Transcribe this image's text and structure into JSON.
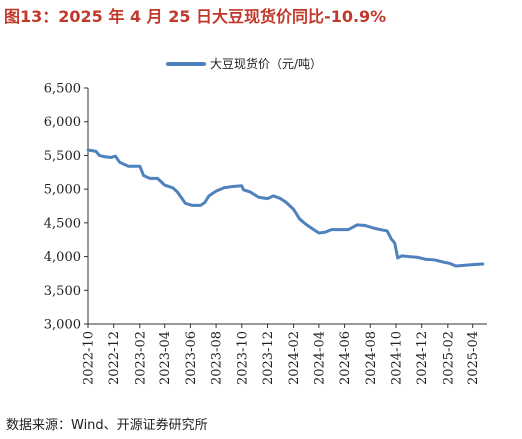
{
  "title": "图13：2025 年 4 月 25 日大豆现货价同比-10.9%",
  "source": "数据来源：Wind、开源证券研究所",
  "colors": {
    "title": "#c0392b",
    "line": "#4f81bd",
    "axis": "#333333"
  },
  "chart_data": {
    "type": "line",
    "title": "图13：2025 年 4 月 25 日大豆现货价同比-10.9%",
    "xlabel": "",
    "ylabel": "",
    "ylim": [
      3000,
      6500
    ],
    "yticks": [
      "3,000",
      "3,500",
      "4,000",
      "4,500",
      "5,000",
      "5,500",
      "6,000",
      "6,500"
    ],
    "ytick_values": [
      3000,
      3500,
      4000,
      4500,
      5000,
      5500,
      6000,
      6500
    ],
    "xticks": [
      "2022-10",
      "2022-12",
      "2023-02",
      "2023-04",
      "2023-06",
      "2023-08",
      "2023-10",
      "2023-12",
      "2024-02",
      "2024-04",
      "2024-06",
      "2024-08",
      "2024-10",
      "2024-12",
      "2025-02",
      "2025-04"
    ],
    "xlim": [
      "2022-10-01",
      "2025-05-05"
    ],
    "grid": false,
    "legend": "top",
    "series": [
      {
        "name": "大豆现货价（元/吨）",
        "color": "#4f81bd",
        "points": [
          [
            "2022-10-01",
            5580
          ],
          [
            "2022-10-20",
            5560
          ],
          [
            "2022-10-28",
            5500
          ],
          [
            "2022-11-10",
            5480
          ],
          [
            "2022-11-25",
            5470
          ],
          [
            "2022-12-05",
            5490
          ],
          [
            "2022-12-15",
            5400
          ],
          [
            "2022-12-25",
            5370
          ],
          [
            "2023-01-05",
            5340
          ],
          [
            "2023-02-01",
            5340
          ],
          [
            "2023-02-10",
            5200
          ],
          [
            "2023-02-25",
            5160
          ],
          [
            "2023-03-15",
            5160
          ],
          [
            "2023-04-01",
            5060
          ],
          [
            "2023-04-20",
            5020
          ],
          [
            "2023-05-01",
            4960
          ],
          [
            "2023-05-10",
            4880
          ],
          [
            "2023-05-20",
            4790
          ],
          [
            "2023-06-05",
            4760
          ],
          [
            "2023-06-25",
            4760
          ],
          [
            "2023-07-05",
            4800
          ],
          [
            "2023-07-15",
            4900
          ],
          [
            "2023-08-01",
            4970
          ],
          [
            "2023-08-20",
            5020
          ],
          [
            "2023-09-10",
            5040
          ],
          [
            "2023-10-01",
            5050
          ],
          [
            "2023-10-05",
            4990
          ],
          [
            "2023-10-20",
            4960
          ],
          [
            "2023-11-10",
            4880
          ],
          [
            "2023-12-01",
            4860
          ],
          [
            "2023-12-15",
            4900
          ],
          [
            "2024-01-01",
            4860
          ],
          [
            "2024-01-15",
            4800
          ],
          [
            "2024-02-01",
            4700
          ],
          [
            "2024-02-15",
            4560
          ],
          [
            "2024-03-01",
            4480
          ],
          [
            "2024-03-15",
            4420
          ],
          [
            "2024-04-01",
            4350
          ],
          [
            "2024-04-15",
            4360
          ],
          [
            "2024-05-01",
            4400
          ],
          [
            "2024-05-20",
            4400
          ],
          [
            "2024-06-10",
            4400
          ],
          [
            "2024-07-01",
            4470
          ],
          [
            "2024-07-20",
            4460
          ],
          [
            "2024-08-10",
            4420
          ],
          [
            "2024-08-25",
            4400
          ],
          [
            "2024-09-10",
            4380
          ],
          [
            "2024-09-20",
            4260
          ],
          [
            "2024-09-28",
            4200
          ],
          [
            "2024-10-05",
            3980
          ],
          [
            "2024-10-15",
            4010
          ],
          [
            "2024-11-01",
            4000
          ],
          [
            "2024-11-20",
            3990
          ],
          [
            "2024-12-10",
            3960
          ],
          [
            "2025-01-01",
            3950
          ],
          [
            "2025-01-20",
            3920
          ],
          [
            "2025-02-05",
            3900
          ],
          [
            "2025-02-20",
            3860
          ],
          [
            "2025-03-10",
            3870
          ],
          [
            "2025-04-01",
            3880
          ],
          [
            "2025-04-25",
            3890
          ]
        ]
      }
    ]
  }
}
